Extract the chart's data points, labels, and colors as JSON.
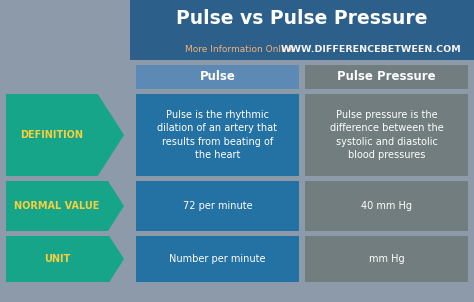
{
  "title": "Pulse vs Pulse Pressure",
  "subtitle_left": "More Information Online",
  "subtitle_right": "WWW.DIFFERENCEBETWEEN.COM",
  "col1_header": "Pulse",
  "col2_header": "Pulse Pressure",
  "rows": [
    {
      "label": "DEFINITION",
      "col1": "Pulse is the rhythmic\ndilation of an artery that\nresults from beating of\nthe heart",
      "col2": "Pulse pressure is the\ndifference between the\nsystolic and diastolic\nblood pressures"
    },
    {
      "label": "NORMAL VALUE",
      "col1": "72 per minute",
      "col2": "40 mm Hg"
    },
    {
      "label": "UNIT",
      "col1": "Number per minute",
      "col2": "mm Hg"
    }
  ],
  "bg_color": "#8c9aaa",
  "header_bg": "#2c5f8a",
  "col1_cell_bg": "#2471a3",
  "col2_cell_bg": "#717d7e",
  "arrow_bg": "#17a589",
  "arrow_label_color": "#f4d03f",
  "title_color": "#ffffff",
  "subtitle_left_color": "#f0b27a",
  "subtitle_right_color": "#f5f5f5",
  "header_text_color": "#ffffff",
  "cell_text_color": "#ffffff",
  "header_col1_bg": "#5d8ab4",
  "header_col2_bg": "#717d7e"
}
